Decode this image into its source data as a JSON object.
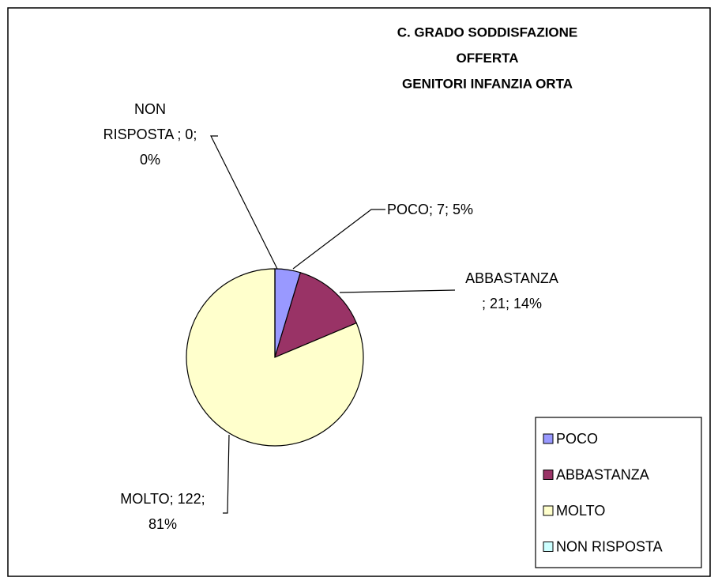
{
  "chart_data": {
    "type": "pie",
    "title": [
      "C. GRADO SODDISFAZIONE",
      "OFFERTA",
      "GENITORI INFANZIA ORTA"
    ],
    "categories": [
      "POCO",
      "ABBASTANZA",
      "MOLTO",
      "NON RISPOSTA"
    ],
    "values": [
      7,
      21,
      122,
      0
    ],
    "value_labels": [
      "POCO; 7; 5%",
      "ABBASTANZA ; 21; 14%",
      "MOLTO; 122; 81%",
      "NON RISPOSTA ; 0; 0%"
    ],
    "colors": [
      "#9999ff",
      "#993366",
      "#ffffcc",
      "#ccffff"
    ],
    "legend": "bottom-right"
  }
}
